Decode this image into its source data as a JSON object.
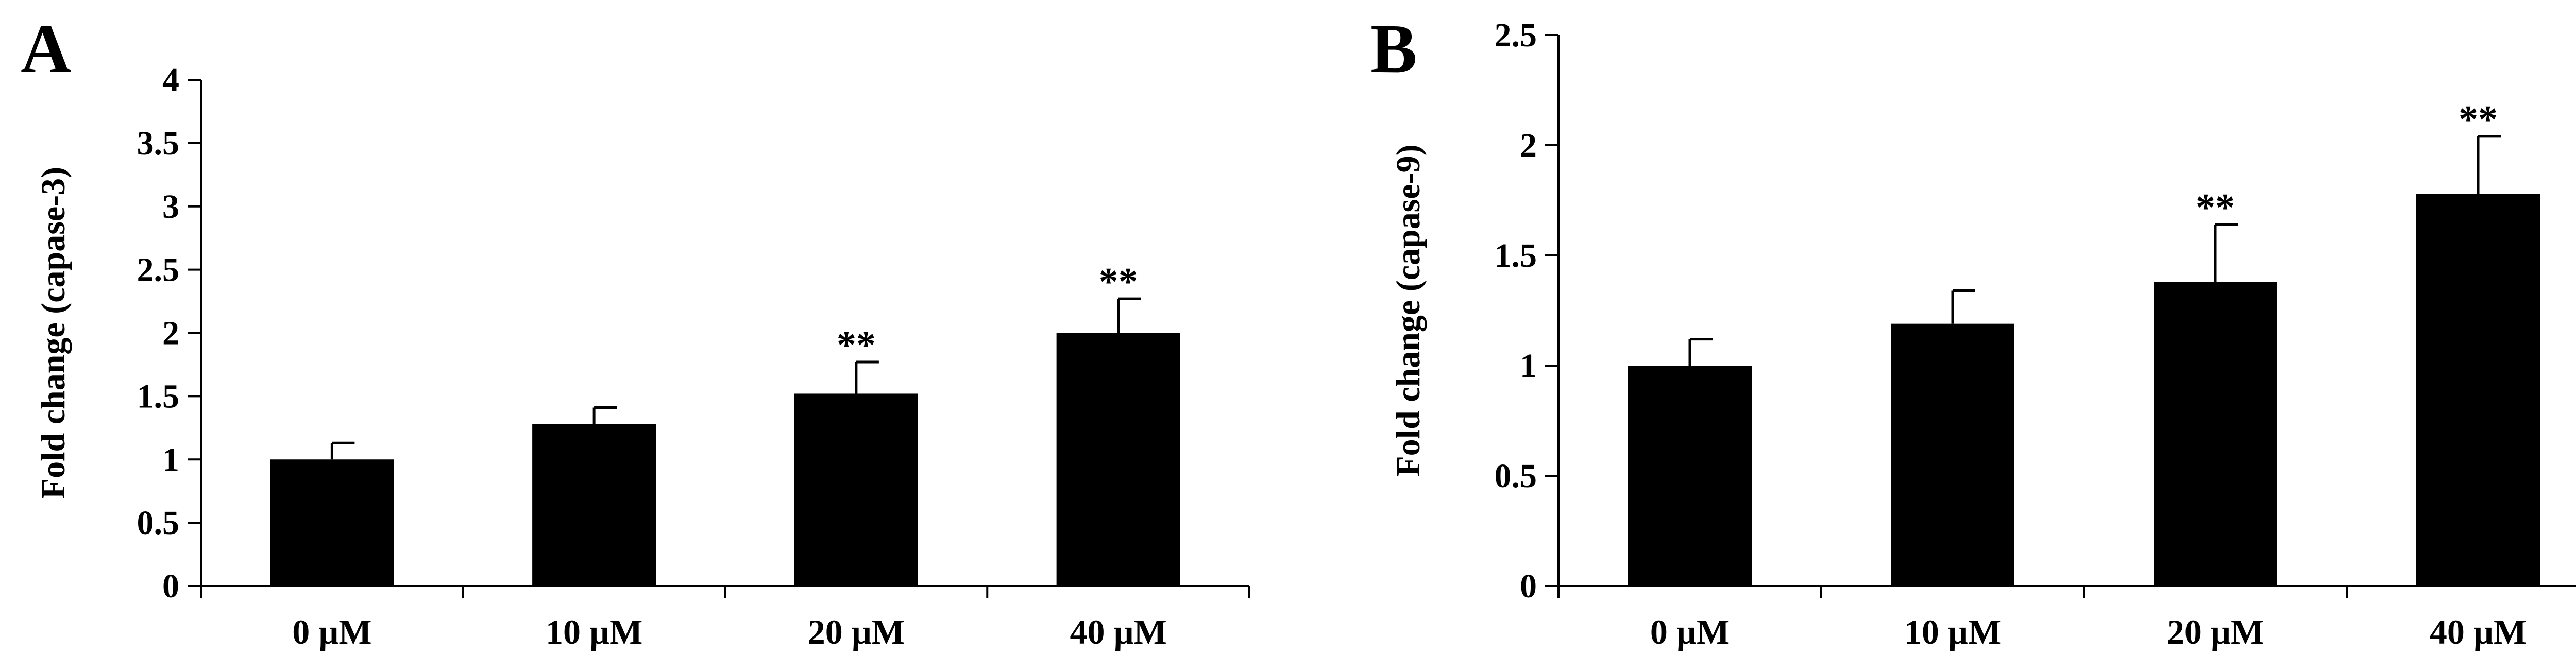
{
  "colors": {
    "bar": "#000000",
    "axis": "#000000",
    "background": "#ffffff"
  },
  "chart_data": [
    {
      "panel_label": "A",
      "type": "bar",
      "categories": [
        "0 µM",
        "10 µM",
        "20 µM",
        "40 µM"
      ],
      "values": [
        1.0,
        1.28,
        1.52,
        2.0
      ],
      "errors": [
        0.13,
        0.13,
        0.25,
        0.27
      ],
      "significance": [
        "",
        "",
        "**",
        "**"
      ],
      "ylabel": "Fold change (capase-3)",
      "xlabel": "",
      "ylim": [
        0,
        4
      ],
      "ytick_step": 0.5,
      "ytick_labels": [
        "0",
        "0.5",
        "1",
        "1.5",
        "2",
        "2.5",
        "3",
        "3.5",
        "4"
      ],
      "grid": false,
      "legend": "none"
    },
    {
      "panel_label": "B",
      "type": "bar",
      "categories": [
        "0 µM",
        "10 µM",
        "20 µM",
        "40 µM"
      ],
      "values": [
        1.0,
        1.19,
        1.38,
        1.78
      ],
      "errors": [
        0.12,
        0.15,
        0.26,
        0.26
      ],
      "significance": [
        "",
        "",
        "**",
        "**"
      ],
      "ylabel": "Fold change (capase-9)",
      "xlabel": "",
      "ylim": [
        0,
        2.5
      ],
      "ytick_step": 0.5,
      "ytick_labels": [
        "0",
        "0.5",
        "1",
        "1.5",
        "2",
        "2.5"
      ],
      "grid": false,
      "legend": "none"
    }
  ]
}
